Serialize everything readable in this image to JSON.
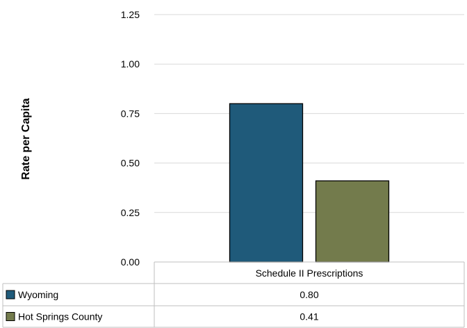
{
  "chart_data": {
    "type": "bar",
    "ylabel": "Rate per Capita",
    "ylim": [
      0,
      1.25
    ],
    "yticks": [
      "0.00",
      "0.25",
      "0.50",
      "0.75",
      "1.00",
      "1.25"
    ],
    "categories": [
      "Schedule II Prescriptions"
    ],
    "series": [
      {
        "name": "Wyoming",
        "values": [
          0.8
        ],
        "value_labels": [
          "0.80"
        ],
        "color": "#1f5a7a"
      },
      {
        "name": "Hot Springs County",
        "values": [
          0.41
        ],
        "value_labels": [
          "0.41"
        ],
        "color": "#737b4c"
      }
    ],
    "grid": true,
    "legend": "data-table",
    "data_table": true
  }
}
